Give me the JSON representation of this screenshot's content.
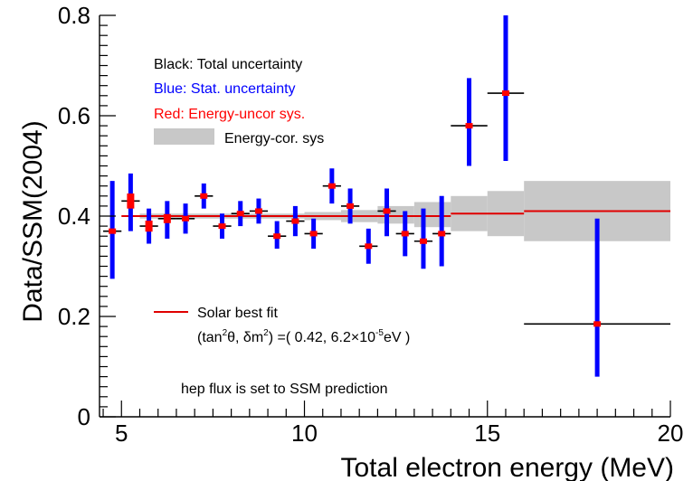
{
  "chart_data": {
    "type": "scatter",
    "title": "",
    "xlabel": "Total electron energy (MeV)",
    "ylabel": "Data/SSM(2004)",
    "xlim": [
      4.4,
      20
    ],
    "ylim": [
      0,
      0.8
    ],
    "x_ticks": [
      5,
      10,
      15,
      20
    ],
    "x_tick_labels": [
      "5",
      "10",
      "15",
      "20"
    ],
    "y_ticks": [
      0,
      0.2,
      0.4,
      0.6,
      0.8
    ],
    "y_tick_labels": [
      "0",
      "0.2",
      "0.4",
      "0.6",
      "0.8"
    ],
    "legend": [
      {
        "label": "Black: Total uncertainty",
        "color": "#000000"
      },
      {
        "label": "Blue: Stat. uncertainty",
        "color": "#0000ff"
      },
      {
        "label": "Red: Energy-uncor sys.",
        "color": "#ff0000"
      },
      {
        "label": "Energy-cor. sys",
        "color": "#c8c8c8"
      }
    ],
    "annotations": {
      "fit_label": "Solar best fit",
      "fit_params_prefix": "(tan",
      "fit_params_sup1": "2",
      "fit_params_theta": "θ, δm",
      "fit_params_sup2": "2",
      "fit_params_mid": ") =( 0.42, 6.2×10",
      "fit_params_sup3": "-5",
      "fit_params_suffix": "eV )",
      "hep_note": "hep flux is set to SSM prediction"
    },
    "colors": {
      "total": "#000000",
      "stat": "#0000ff",
      "uncor": "#ff0000",
      "band": "#c8c8c8",
      "fit": "#e00000"
    },
    "points": [
      {
        "x": 4.75,
        "xlo": 4.5,
        "xhi": 5.0,
        "y": 0.37,
        "stat": [
          0.275,
          0.47
        ],
        "uncor": [
          0.37,
          0.37
        ]
      },
      {
        "x": 5.25,
        "xlo": 5.0,
        "xhi": 5.5,
        "y": 0.43,
        "stat": [
          0.37,
          0.485
        ],
        "uncor": [
          0.415,
          0.445
        ]
      },
      {
        "x": 5.75,
        "xlo": 5.5,
        "xhi": 6.0,
        "y": 0.38,
        "stat": [
          0.345,
          0.415
        ],
        "uncor": [
          0.37,
          0.392
        ]
      },
      {
        "x": 6.25,
        "xlo": 6.0,
        "xhi": 6.5,
        "y": 0.395,
        "stat": [
          0.355,
          0.43
        ],
        "uncor": [
          0.387,
          0.405
        ]
      },
      {
        "x": 6.75,
        "xlo": 6.5,
        "xhi": 7.0,
        "y": 0.395,
        "stat": [
          0.365,
          0.425
        ],
        "uncor": [
          0.39,
          0.4
        ]
      },
      {
        "x": 7.25,
        "xlo": 7.0,
        "xhi": 7.5,
        "y": 0.44,
        "stat": [
          0.415,
          0.465
        ],
        "uncor": [
          0.436,
          0.444
        ]
      },
      {
        "x": 7.75,
        "xlo": 7.5,
        "xhi": 8.0,
        "y": 0.38,
        "stat": [
          0.355,
          0.405
        ],
        "uncor": [
          0.377,
          0.383
        ]
      },
      {
        "x": 8.25,
        "xlo": 8.0,
        "xhi": 8.5,
        "y": 0.405,
        "stat": [
          0.38,
          0.43
        ],
        "uncor": [
          0.402,
          0.408
        ]
      },
      {
        "x": 8.75,
        "xlo": 8.5,
        "xhi": 9.0,
        "y": 0.41,
        "stat": [
          0.385,
          0.435
        ],
        "uncor": [
          0.407,
          0.413
        ]
      },
      {
        "x": 9.25,
        "xlo": 9.0,
        "xhi": 9.5,
        "y": 0.36,
        "stat": [
          0.335,
          0.39
        ],
        "uncor": [
          0.357,
          0.363
        ]
      },
      {
        "x": 9.75,
        "xlo": 9.5,
        "xhi": 10.0,
        "y": 0.39,
        "stat": [
          0.36,
          0.42
        ],
        "uncor": [
          0.387,
          0.393
        ]
      },
      {
        "x": 10.25,
        "xlo": 10.0,
        "xhi": 10.5,
        "y": 0.365,
        "stat": [
          0.335,
          0.395
        ],
        "uncor": [
          0.362,
          0.368
        ]
      },
      {
        "x": 10.75,
        "xlo": 10.5,
        "xhi": 11.0,
        "y": 0.46,
        "stat": [
          0.425,
          0.495
        ],
        "uncor": [
          0.457,
          0.463
        ]
      },
      {
        "x": 11.25,
        "xlo": 11.0,
        "xhi": 11.5,
        "y": 0.42,
        "stat": [
          0.385,
          0.455
        ],
        "uncor": [
          0.417,
          0.423
        ]
      },
      {
        "x": 11.75,
        "xlo": 11.5,
        "xhi": 12.0,
        "y": 0.34,
        "stat": [
          0.305,
          0.375
        ],
        "uncor": [
          0.337,
          0.343
        ]
      },
      {
        "x": 12.25,
        "xlo": 12.0,
        "xhi": 12.5,
        "y": 0.41,
        "stat": [
          0.36,
          0.455
        ],
        "uncor": [
          0.407,
          0.413
        ]
      },
      {
        "x": 12.75,
        "xlo": 12.5,
        "xhi": 13.0,
        "y": 0.365,
        "stat": [
          0.32,
          0.41
        ],
        "uncor": [
          0.362,
          0.368
        ]
      },
      {
        "x": 13.25,
        "xlo": 13.0,
        "xhi": 13.5,
        "y": 0.35,
        "stat": [
          0.295,
          0.415
        ],
        "uncor": [
          0.347,
          0.353
        ]
      },
      {
        "x": 13.75,
        "xlo": 13.5,
        "xhi": 14.0,
        "y": 0.365,
        "stat": [
          0.3,
          0.44
        ],
        "uncor": [
          0.362,
          0.368
        ]
      },
      {
        "x": 14.5,
        "xlo": 14.0,
        "xhi": 15.0,
        "y": 0.58,
        "stat": [
          0.5,
          0.675
        ],
        "uncor": [
          0.577,
          0.583
        ]
      },
      {
        "x": 15.5,
        "xlo": 15.0,
        "xhi": 16.0,
        "y": 0.645,
        "stat": [
          0.51,
          0.8
        ],
        "uncor": [
          0.642,
          0.648
        ]
      },
      {
        "x": 18.0,
        "xlo": 16.0,
        "xhi": 20.0,
        "y": 0.185,
        "stat": [
          0.08,
          0.395
        ],
        "uncor": [
          0.182,
          0.188
        ]
      }
    ],
    "fit_line": [
      {
        "x1": 5.0,
        "x2": 14.0,
        "y": 0.4
      },
      {
        "x1": 14.0,
        "x2": 16.0,
        "y": 0.405
      },
      {
        "x1": 16.0,
        "x2": 20.0,
        "y": 0.41
      }
    ],
    "cor_sys_band": [
      {
        "xlo": 5.5,
        "xhi": 10.0,
        "lo": 0.395,
        "hi": 0.405
      },
      {
        "xlo": 10.0,
        "xhi": 11.0,
        "lo": 0.392,
        "hi": 0.408
      },
      {
        "xlo": 11.0,
        "xhi": 12.0,
        "lo": 0.388,
        "hi": 0.412
      },
      {
        "xlo": 12.0,
        "xhi": 13.0,
        "lo": 0.385,
        "hi": 0.42
      },
      {
        "xlo": 13.0,
        "xhi": 14.0,
        "lo": 0.378,
        "hi": 0.428
      },
      {
        "xlo": 14.0,
        "xhi": 15.0,
        "lo": 0.37,
        "hi": 0.44
      },
      {
        "xlo": 15.0,
        "xhi": 16.0,
        "lo": 0.36,
        "hi": 0.45
      },
      {
        "xlo": 16.0,
        "xhi": 20.0,
        "lo": 0.35,
        "hi": 0.47
      }
    ]
  }
}
